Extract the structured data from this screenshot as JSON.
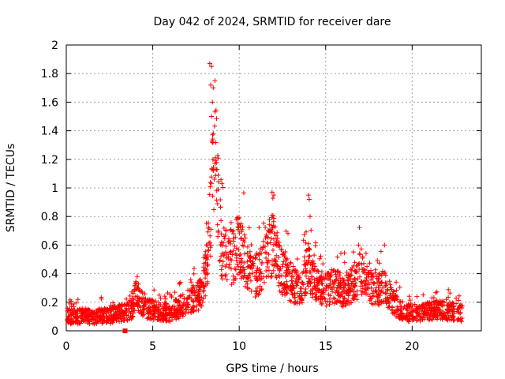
{
  "chart_data": {
    "type": "scatter",
    "title": "Day 042 of 2024, SRMTID for receiver dare",
    "xlabel": "GPS time / hours",
    "ylabel": "SRMTID / TECUs",
    "xlim": [
      0,
      24
    ],
    "ylim": [
      0,
      2
    ],
    "x_ticks": [
      0,
      5,
      10,
      15,
      20
    ],
    "y_ticks": [
      0,
      0.2,
      0.4,
      0.6,
      0.8,
      1,
      1.2,
      1.4,
      1.6,
      1.8,
      2
    ],
    "x_tick_labels": [
      "0",
      "5",
      "10",
      "15",
      "20"
    ],
    "y_tick_labels": [
      "0",
      "0.2",
      "0.4",
      "0.6",
      "0.8",
      "1",
      "1.2",
      "1.4",
      "1.6",
      "1.8",
      "2"
    ],
    "grid": true,
    "marker": "+",
    "color": "#ff0000",
    "series": [
      {
        "name": "SRMTID",
        "profile_x": [
          0,
          0.5,
          1,
          1.5,
          2,
          2.5,
          3,
          3.5,
          3.8,
          4.0,
          4.3,
          4.6,
          5.0,
          5.5,
          6.0,
          6.5,
          7.0,
          7.5,
          7.8,
          8.0,
          8.2,
          8.4,
          8.6,
          8.8,
          9.0,
          9.3,
          9.6,
          10.0,
          10.4,
          10.8,
          11.2,
          11.6,
          12.0,
          12.4,
          12.8,
          13.2,
          13.6,
          14.0,
          14.3,
          14.6,
          15.0,
          15.5,
          16.0,
          16.5,
          17.0,
          17.5,
          18.0,
          18.4,
          18.8,
          19.2,
          19.6,
          20.0,
          20.5,
          21.0,
          21.5,
          22.0,
          22.5,
          22.9
        ],
        "profile_y": [
          0.1,
          0.09,
          0.1,
          0.09,
          0.1,
          0.1,
          0.12,
          0.12,
          0.15,
          0.25,
          0.2,
          0.15,
          0.14,
          0.13,
          0.12,
          0.15,
          0.2,
          0.22,
          0.25,
          0.35,
          0.5,
          0.9,
          1.3,
          0.8,
          0.55,
          0.5,
          0.5,
          0.6,
          0.45,
          0.35,
          0.4,
          0.55,
          0.6,
          0.4,
          0.35,
          0.3,
          0.3,
          0.45,
          0.35,
          0.3,
          0.28,
          0.3,
          0.27,
          0.3,
          0.38,
          0.3,
          0.28,
          0.3,
          0.2,
          0.15,
          0.12,
          0.12,
          0.12,
          0.13,
          0.14,
          0.13,
          0.13,
          0.12
        ],
        "spikes": [
          {
            "x": 8.3,
            "y": 1.87
          },
          {
            "x": 8.4,
            "y": 1.85
          },
          {
            "x": 8.35,
            "y": 1.72
          },
          {
            "x": 8.5,
            "y": 1.7
          },
          {
            "x": 8.45,
            "y": 1.6
          },
          {
            "x": 8.4,
            "y": 1.5
          },
          {
            "x": 8.5,
            "y": 1.38
          },
          {
            "x": 8.45,
            "y": 1.32
          },
          {
            "x": 8.6,
            "y": 1.17
          },
          {
            "x": 8.5,
            "y": 1.12
          },
          {
            "x": 8.7,
            "y": 0.98
          },
          {
            "x": 9.0,
            "y": 1.03
          },
          {
            "x": 11.9,
            "y": 0.97
          },
          {
            "x": 12.0,
            "y": 0.95
          },
          {
            "x": 14.0,
            "y": 0.95
          },
          {
            "x": 14.05,
            "y": 0.92
          },
          {
            "x": 14.1,
            "y": 0.8
          },
          {
            "x": 16.9,
            "y": 0.6
          },
          {
            "x": 18.4,
            "y": 0.6
          },
          {
            "x": 4.1,
            "y": 0.38
          },
          {
            "x": 3.4,
            "y": 0.0
          }
        ],
        "x_range": [
          0,
          22.9
        ],
        "approx_points": 2200
      }
    ]
  }
}
